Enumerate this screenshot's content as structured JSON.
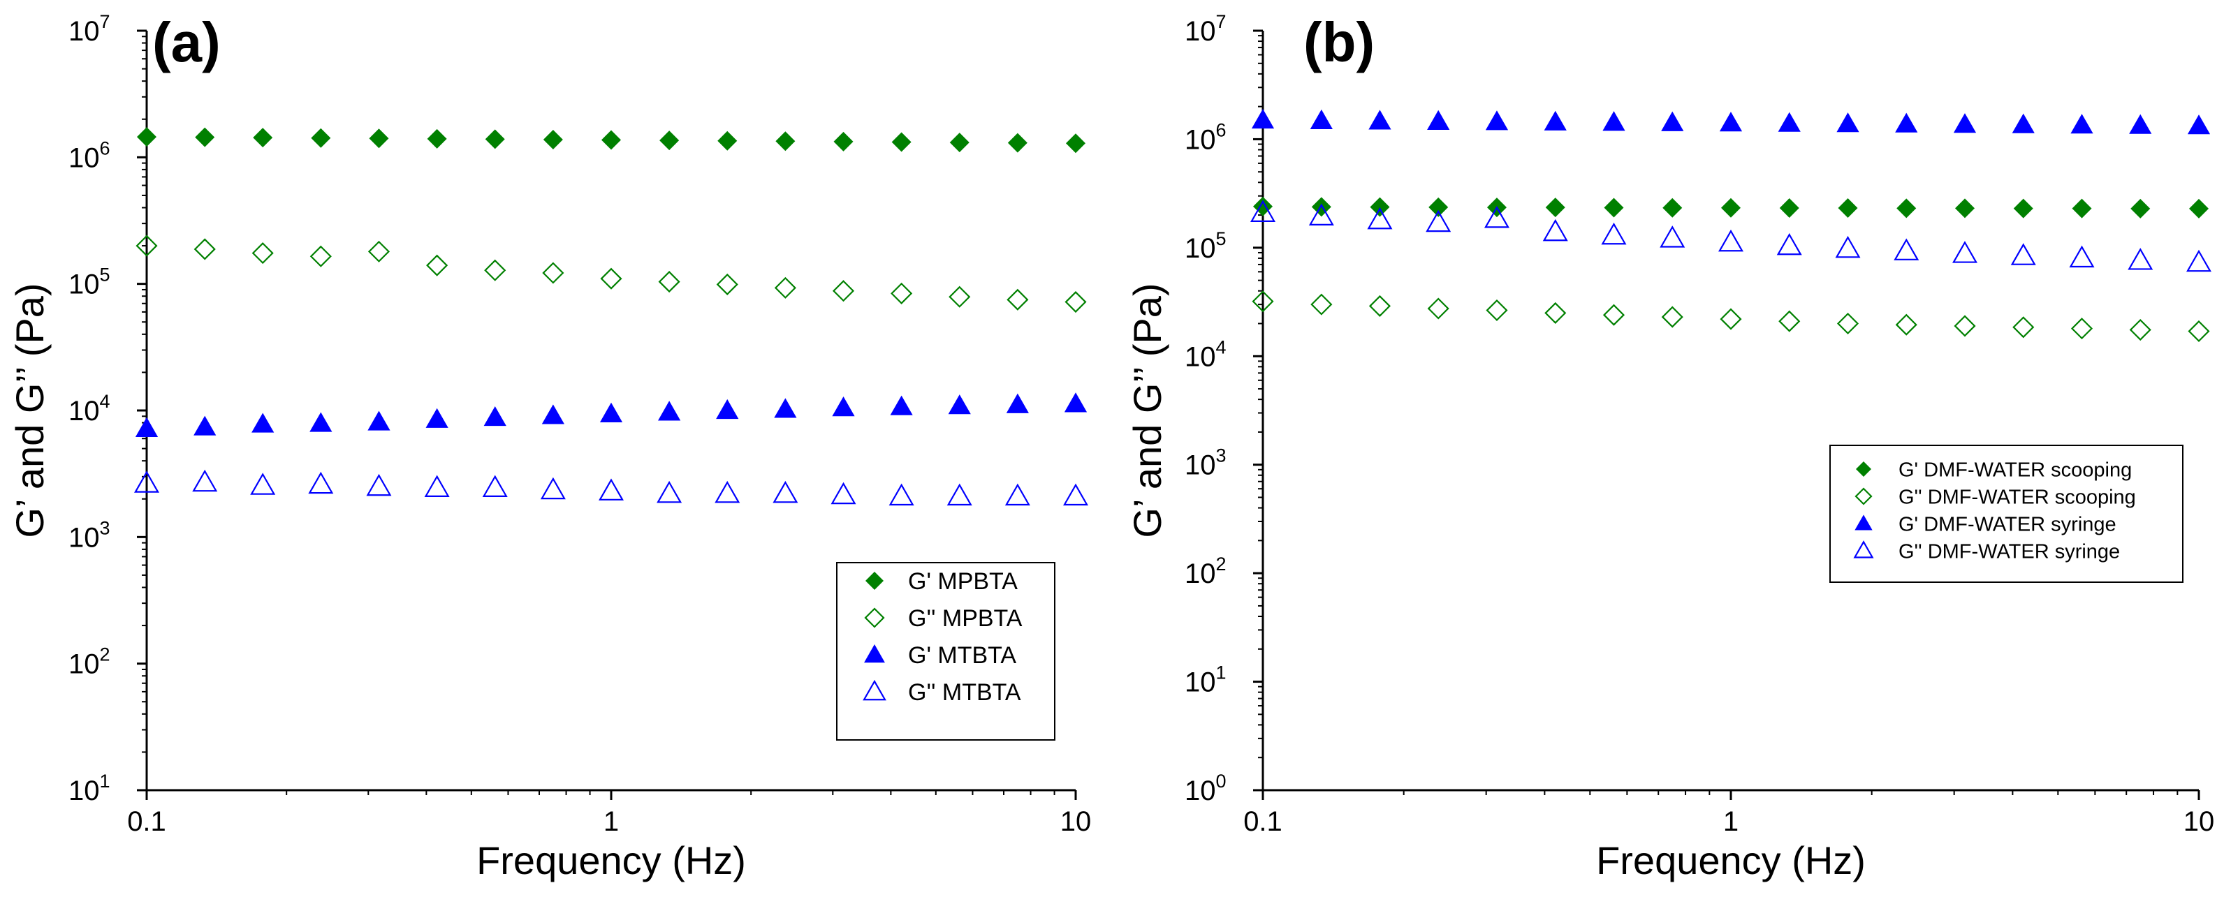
{
  "chart_data": [
    {
      "type": "scatter",
      "panel_label": "(a)",
      "xlabel": "Frequency (Hz)",
      "ylabel": "G’ and G’’ (Pa)",
      "xscale": "log",
      "yscale": "log",
      "xlim": [
        0.1,
        10
      ],
      "ylim": [
        10,
        10000000
      ],
      "x_ticks": [
        {
          "value": 0.1,
          "label": "0.1"
        },
        {
          "value": 1,
          "label": "1"
        },
        {
          "value": 10,
          "label": "10"
        }
      ],
      "y_ticks": [
        {
          "value": 10,
          "base": "10",
          "exp": "1"
        },
        {
          "value": 100,
          "base": "10",
          "exp": "2"
        },
        {
          "value": 1000,
          "base": "10",
          "exp": "3"
        },
        {
          "value": 10000,
          "base": "10",
          "exp": "4"
        },
        {
          "value": 100000,
          "base": "10",
          "exp": "5"
        },
        {
          "value": 1000000,
          "base": "10",
          "exp": "6"
        },
        {
          "value": 10000000,
          "base": "10",
          "exp": "7"
        }
      ],
      "legend_position": "bottom-right",
      "x": [
        0.1,
        0.1334,
        0.1778,
        0.2371,
        0.3162,
        0.4217,
        0.5623,
        0.7499,
        1.0,
        1.3335,
        1.7783,
        2.3714,
        3.1623,
        4.217,
        5.6234,
        7.4989,
        10.0
      ],
      "series": [
        {
          "name": "G' MPBTA",
          "color": "#008000",
          "marker": "diamond",
          "filled": true,
          "values": [
            1450000,
            1440000,
            1430000,
            1420000,
            1410000,
            1400000,
            1390000,
            1380000,
            1370000,
            1360000,
            1350000,
            1340000,
            1330000,
            1320000,
            1310000,
            1300000,
            1290000
          ]
        },
        {
          "name": "G'' MPBTA",
          "color": "#008000",
          "marker": "diamond",
          "filled": false,
          "values": [
            200000,
            188000,
            175000,
            165000,
            180000,
            140000,
            128000,
            122000,
            110000,
            104000,
            99000,
            93000,
            88000,
            84000,
            79000,
            75000,
            72000
          ]
        },
        {
          "name": "G' MTBTA",
          "color": "#0000ff",
          "marker": "triangle",
          "filled": true,
          "values": [
            7200,
            7400,
            7800,
            7900,
            8100,
            8500,
            8800,
            9100,
            9400,
            9700,
            10000,
            10200,
            10500,
            10700,
            10900,
            11100,
            11300
          ]
        },
        {
          "name": "G'' MTBTA",
          "color": "#0000ff",
          "marker": "triangle",
          "filled": false,
          "values": [
            2650,
            2700,
            2550,
            2600,
            2500,
            2450,
            2450,
            2350,
            2300,
            2200,
            2200,
            2200,
            2150,
            2100,
            2100,
            2100,
            2100
          ]
        }
      ]
    },
    {
      "type": "scatter",
      "panel_label": "(b)",
      "xlabel": "Frequency (Hz)",
      "ylabel": "G’ and G’’ (Pa)",
      "xscale": "log",
      "yscale": "log",
      "xlim": [
        0.1,
        10
      ],
      "ylim": [
        1,
        10000000
      ],
      "x_ticks": [
        {
          "value": 0.1,
          "label": "0.1"
        },
        {
          "value": 1,
          "label": "1"
        },
        {
          "value": 10,
          "label": "10"
        }
      ],
      "y_ticks": [
        {
          "value": 1,
          "base": "10",
          "exp": "0"
        },
        {
          "value": 10,
          "base": "10",
          "exp": "1"
        },
        {
          "value": 100,
          "base": "10",
          "exp": "2"
        },
        {
          "value": 1000,
          "base": "10",
          "exp": "3"
        },
        {
          "value": 10000,
          "base": "10",
          "exp": "4"
        },
        {
          "value": 100000,
          "base": "10",
          "exp": "5"
        },
        {
          "value": 1000000,
          "base": "10",
          "exp": "6"
        },
        {
          "value": 10000000,
          "base": "10",
          "exp": "7"
        }
      ],
      "legend_position": "center-right",
      "x": [
        0.1,
        0.1334,
        0.1778,
        0.2371,
        0.3162,
        0.4217,
        0.5623,
        0.7499,
        1.0,
        1.3335,
        1.7783,
        2.3714,
        3.1623,
        4.217,
        5.6234,
        7.4989,
        10.0
      ],
      "series": [
        {
          "name": "G' DMF-WATER scooping",
          "color": "#008000",
          "marker": "diamond",
          "filled": true,
          "values": [
            240000,
            238000,
            237000,
            236000,
            235000,
            235000,
            234000,
            233000,
            233000,
            232000,
            232000,
            231000,
            231000,
            230000,
            230000,
            229000,
            229000
          ]
        },
        {
          "name": "G'' DMF-WATER scooping",
          "color": "#008000",
          "marker": "diamond",
          "filled": false,
          "values": [
            32000,
            30000,
            29000,
            27500,
            26500,
            25000,
            24000,
            23000,
            22000,
            21000,
            20000,
            19500,
            19000,
            18500,
            18000,
            17500,
            17000
          ]
        },
        {
          "name": "G' DMF-WATER syringe",
          "color": "#0000ff",
          "marker": "triangle",
          "filled": true,
          "values": [
            1500000,
            1480000,
            1470000,
            1460000,
            1450000,
            1440000,
            1430000,
            1420000,
            1410000,
            1400000,
            1390000,
            1380000,
            1370000,
            1360000,
            1350000,
            1340000,
            1330000
          ]
        },
        {
          "name": "G'' DMF-WATER syringe",
          "color": "#0000ff",
          "marker": "triangle",
          "filled": false,
          "values": [
            210000,
            195000,
            180000,
            170000,
            185000,
            140000,
            130000,
            122000,
            112000,
            104000,
            98000,
            93000,
            88000,
            84000,
            80000,
            76000,
            73000
          ]
        }
      ]
    }
  ]
}
